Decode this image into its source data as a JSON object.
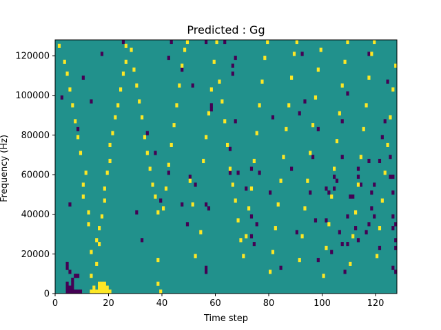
{
  "chart_data": {
    "type": "heatmap",
    "title": "Predicted : Gg",
    "xlabel": "Time step",
    "ylabel": "Frequency (Hz)",
    "xlim": [
      0,
      128
    ],
    "ylim": [
      0,
      128000
    ],
    "x_ticks": [
      0,
      20,
      40,
      60,
      80,
      100,
      120
    ],
    "y_ticks": [
      0,
      20000,
      40000,
      60000,
      80000,
      100000,
      120000
    ],
    "grid": false,
    "legend": "none",
    "n_time_steps": 128,
    "n_freq_bins": 64,
    "background_value": 0,
    "colors": {
      "background": "#21918c",
      "high": "#fde725",
      "low": "#440154"
    },
    "cells": [
      [
        4,
        6,
        "low"
      ],
      [
        4,
        7,
        "low"
      ],
      [
        5,
        5,
        "low"
      ],
      [
        6,
        3,
        "low"
      ],
      [
        7,
        4,
        "low"
      ],
      [
        8,
        4,
        "low"
      ],
      [
        5,
        22,
        "low"
      ],
      [
        8,
        41,
        "low"
      ],
      [
        7,
        0,
        "low"
      ],
      [
        8,
        0,
        "low"
      ],
      [
        9,
        0,
        "low"
      ],
      [
        5,
        1,
        "low"
      ],
      [
        6,
        1,
        "low"
      ],
      [
        6,
        2,
        "low"
      ],
      [
        5,
        0,
        "low"
      ],
      [
        6,
        0,
        "low"
      ],
      [
        4,
        2,
        "low"
      ],
      [
        4,
        1,
        "low"
      ],
      [
        4,
        0,
        "low"
      ],
      [
        2,
        49,
        "low"
      ],
      [
        10,
        54,
        "low"
      ],
      [
        13,
        48,
        "low"
      ],
      [
        17,
        60,
        "low"
      ],
      [
        25,
        63,
        "low"
      ],
      [
        30,
        20,
        "low"
      ],
      [
        32,
        13,
        "low"
      ],
      [
        34,
        40,
        "low"
      ],
      [
        37,
        35,
        "low"
      ],
      [
        39,
        23,
        "low"
      ],
      [
        42,
        59,
        "low"
      ],
      [
        42,
        30,
        "low"
      ],
      [
        43,
        63,
        "low"
      ],
      [
        47,
        22,
        "low"
      ],
      [
        47,
        56,
        "low"
      ],
      [
        49,
        17,
        "low"
      ],
      [
        50,
        29,
        "low"
      ],
      [
        51,
        52,
        "low"
      ],
      [
        52,
        27,
        "low"
      ],
      [
        56,
        63,
        "low"
      ],
      [
        56,
        22,
        "low"
      ],
      [
        56,
        6,
        "low"
      ],
      [
        56,
        5,
        "low"
      ],
      [
        57,
        21,
        "low"
      ],
      [
        58,
        46,
        "low"
      ],
      [
        58,
        47,
        "low"
      ],
      [
        63,
        63,
        "low"
      ],
      [
        65,
        36,
        "low"
      ],
      [
        65,
        30,
        "low"
      ],
      [
        66,
        57,
        "low"
      ],
      [
        66,
        55,
        "low"
      ],
      [
        67,
        59,
        "low"
      ],
      [
        67,
        43,
        "low"
      ],
      [
        68,
        30,
        "low"
      ],
      [
        71,
        26,
        "low"
      ],
      [
        73,
        31,
        "low"
      ],
      [
        73,
        19,
        "low"
      ],
      [
        73,
        14,
        "low"
      ],
      [
        74,
        12,
        "low"
      ],
      [
        75,
        17,
        "low"
      ],
      [
        76,
        30,
        "low"
      ],
      [
        80,
        25,
        "low"
      ],
      [
        81,
        44,
        "low"
      ],
      [
        84,
        6,
        "low"
      ],
      [
        88,
        31,
        "low"
      ],
      [
        90,
        15,
        "low"
      ],
      [
        91,
        45,
        "low"
      ],
      [
        92,
        60,
        "low"
      ],
      [
        93,
        48,
        "low"
      ],
      [
        95,
        25,
        "low"
      ],
      [
        96,
        34,
        "low"
      ],
      [
        97,
        18,
        "low"
      ],
      [
        98,
        41,
        "low"
      ],
      [
        98,
        8,
        "low"
      ],
      [
        101,
        18,
        "low"
      ],
      [
        101,
        26,
        "low"
      ],
      [
        102,
        25,
        "low"
      ],
      [
        103,
        10,
        "low"
      ],
      [
        104,
        26,
        "low"
      ],
      [
        104,
        29,
        "low"
      ],
      [
        106,
        15,
        "low"
      ],
      [
        107,
        43,
        "low"
      ],
      [
        108,
        5,
        "low"
      ],
      [
        109,
        12,
        "low"
      ],
      [
        110,
        24,
        "low"
      ],
      [
        113,
        31,
        "low"
      ],
      [
        113,
        29,
        "low"
      ],
      [
        114,
        27,
        "low"
      ],
      [
        117,
        60,
        "low"
      ],
      [
        118,
        21,
        "low"
      ],
      [
        119,
        19,
        "low"
      ],
      [
        119,
        27,
        "low"
      ],
      [
        121,
        11,
        "low"
      ],
      [
        123,
        43,
        "low"
      ],
      [
        125,
        29,
        "low"
      ],
      [
        126,
        16,
        "low"
      ],
      [
        127,
        13,
        "low"
      ],
      [
        127,
        5,
        "low"
      ],
      [
        126,
        6,
        "low"
      ],
      [
        126,
        19,
        "low"
      ],
      [
        124,
        53,
        "low"
      ],
      [
        122,
        39,
        "low"
      ],
      [
        126,
        29,
        "low"
      ],
      [
        125,
        34,
        "low"
      ],
      [
        128,
        26,
        "low"
      ],
      [
        127,
        17,
        "low"
      ],
      [
        127,
        11,
        "low"
      ],
      [
        126,
        25,
        "low"
      ],
      [
        121,
        33,
        "low"
      ],
      [
        117,
        33,
        "low"
      ],
      [
        109,
        50,
        "low"
      ],
      [
        109,
        19,
        "low"
      ],
      [
        116,
        15,
        "low"
      ],
      [
        118,
        25,
        "low"
      ],
      [
        117,
        17,
        "low"
      ],
      [
        105,
        28,
        "low"
      ],
      [
        107,
        12,
        "low"
      ],
      [
        107,
        34,
        "low"
      ],
      [
        112,
        16,
        "low"
      ],
      [
        113,
        13,
        "low"
      ],
      [
        111,
        24,
        "low"
      ],
      [
        1,
        62,
        "high"
      ],
      [
        3,
        58,
        "high"
      ],
      [
        4,
        55,
        "high"
      ],
      [
        5,
        51,
        "high"
      ],
      [
        6,
        47,
        "high"
      ],
      [
        7,
        43,
        "high"
      ],
      [
        8,
        39,
        "high"
      ],
      [
        9,
        35,
        "high"
      ],
      [
        10,
        27,
        "high"
      ],
      [
        10,
        24,
        "high"
      ],
      [
        11,
        30,
        "high"
      ],
      [
        12,
        20,
        "high"
      ],
      [
        12,
        17,
        "high"
      ],
      [
        13,
        10,
        "high"
      ],
      [
        13,
        4,
        "high"
      ],
      [
        14,
        1,
        "high"
      ],
      [
        15,
        13,
        "high"
      ],
      [
        15,
        7,
        "high"
      ],
      [
        16,
        2,
        "high"
      ],
      [
        16,
        0,
        "high"
      ],
      [
        17,
        0,
        "high"
      ],
      [
        17,
        1,
        "high"
      ],
      [
        18,
        0,
        "high"
      ],
      [
        18,
        1,
        "high"
      ],
      [
        18,
        2,
        "high"
      ],
      [
        19,
        1,
        "high"
      ],
      [
        20,
        0,
        "high"
      ],
      [
        15,
        0,
        "high"
      ],
      [
        14,
        0,
        "high"
      ],
      [
        13,
        0,
        "high"
      ],
      [
        16,
        1,
        "high"
      ],
      [
        19,
        0,
        "high"
      ],
      [
        17,
        2,
        "high"
      ],
      [
        16,
        12,
        "high"
      ],
      [
        16,
        16,
        "high"
      ],
      [
        17,
        19,
        "high"
      ],
      [
        18,
        23,
        "high"
      ],
      [
        18,
        26,
        "high"
      ],
      [
        19,
        30,
        "high"
      ],
      [
        20,
        33,
        "high"
      ],
      [
        20,
        37,
        "high"
      ],
      [
        21,
        40,
        "high"
      ],
      [
        22,
        44,
        "high"
      ],
      [
        23,
        47,
        "high"
      ],
      [
        24,
        51,
        "high"
      ],
      [
        25,
        55,
        "high"
      ],
      [
        26,
        58,
        "high"
      ],
      [
        26,
        62,
        "high"
      ],
      [
        28,
        61,
        "high"
      ],
      [
        29,
        56,
        "high"
      ],
      [
        30,
        52,
        "high"
      ],
      [
        31,
        48,
        "high"
      ],
      [
        32,
        44,
        "high"
      ],
      [
        33,
        39,
        "high"
      ],
      [
        34,
        35,
        "high"
      ],
      [
        35,
        31,
        "high"
      ],
      [
        36,
        27,
        "high"
      ],
      [
        37,
        24,
        "high"
      ],
      [
        38,
        20,
        "high"
      ],
      [
        38,
        8,
        "high"
      ],
      [
        38,
        2,
        "high"
      ],
      [
        39,
        0,
        "high"
      ],
      [
        40,
        21,
        "high"
      ],
      [
        41,
        26,
        "high"
      ],
      [
        42,
        32,
        "high"
      ],
      [
        43,
        37,
        "high"
      ],
      [
        44,
        42,
        "high"
      ],
      [
        45,
        47,
        "high"
      ],
      [
        46,
        52,
        "high"
      ],
      [
        47,
        57,
        "high"
      ],
      [
        48,
        61,
        "high"
      ],
      [
        49,
        63,
        "high"
      ],
      [
        50,
        28,
        "high"
      ],
      [
        51,
        22,
        "high"
      ],
      [
        52,
        9,
        "high"
      ],
      [
        54,
        15,
        "high"
      ],
      [
        55,
        33,
        "high"
      ],
      [
        56,
        39,
        "high"
      ],
      [
        57,
        45,
        "high"
      ],
      [
        58,
        51,
        "high"
      ],
      [
        59,
        58,
        "high"
      ],
      [
        60,
        63,
        "high"
      ],
      [
        61,
        53,
        "high"
      ],
      [
        62,
        48,
        "high"
      ],
      [
        63,
        43,
        "high"
      ],
      [
        64,
        37,
        "high"
      ],
      [
        65,
        31,
        "high"
      ],
      [
        66,
        27,
        "high"
      ],
      [
        67,
        23,
        "high"
      ],
      [
        68,
        18,
        "high"
      ],
      [
        69,
        13,
        "high"
      ],
      [
        70,
        9,
        "high"
      ],
      [
        71,
        14,
        "high"
      ],
      [
        72,
        21,
        "high"
      ],
      [
        73,
        26,
        "high"
      ],
      [
        74,
        33,
        "high"
      ],
      [
        75,
        40,
        "high"
      ],
      [
        76,
        47,
        "high"
      ],
      [
        77,
        53,
        "high"
      ],
      [
        78,
        59,
        "high"
      ],
      [
        79,
        63,
        "high"
      ],
      [
        80,
        5,
        "high"
      ],
      [
        81,
        10,
        "high"
      ],
      [
        82,
        16,
        "high"
      ],
      [
        83,
        22,
        "high"
      ],
      [
        84,
        28,
        "high"
      ],
      [
        85,
        34,
        "high"
      ],
      [
        86,
        41,
        "high"
      ],
      [
        87,
        47,
        "high"
      ],
      [
        88,
        54,
        "high"
      ],
      [
        89,
        60,
        "high"
      ],
      [
        90,
        63,
        "high"
      ],
      [
        91,
        8,
        "high"
      ],
      [
        92,
        14,
        "high"
      ],
      [
        93,
        21,
        "high"
      ],
      [
        94,
        28,
        "high"
      ],
      [
        95,
        35,
        "high"
      ],
      [
        96,
        42,
        "high"
      ],
      [
        97,
        49,
        "high"
      ],
      [
        98,
        56,
        "high"
      ],
      [
        99,
        61,
        "high"
      ],
      [
        100,
        4,
        "high"
      ],
      [
        101,
        11,
        "high"
      ],
      [
        102,
        17,
        "high"
      ],
      [
        103,
        24,
        "high"
      ],
      [
        104,
        31,
        "high"
      ],
      [
        105,
        38,
        "high"
      ],
      [
        106,
        45,
        "high"
      ],
      [
        107,
        52,
        "high"
      ],
      [
        108,
        58,
        "high"
      ],
      [
        109,
        63,
        "high"
      ],
      [
        110,
        7,
        "high"
      ],
      [
        111,
        14,
        "high"
      ],
      [
        112,
        20,
        "high"
      ],
      [
        113,
        27,
        "high"
      ],
      [
        114,
        34,
        "high"
      ],
      [
        115,
        41,
        "high"
      ],
      [
        116,
        47,
        "high"
      ],
      [
        117,
        54,
        "high"
      ],
      [
        118,
        60,
        "high"
      ],
      [
        119,
        63,
        "high"
      ],
      [
        120,
        9,
        "high"
      ],
      [
        121,
        16,
        "high"
      ],
      [
        122,
        23,
        "high"
      ],
      [
        123,
        30,
        "high"
      ],
      [
        124,
        37,
        "high"
      ],
      [
        125,
        44,
        "high"
      ],
      [
        126,
        51,
        "high"
      ],
      [
        127,
        57,
        "high"
      ]
    ]
  }
}
